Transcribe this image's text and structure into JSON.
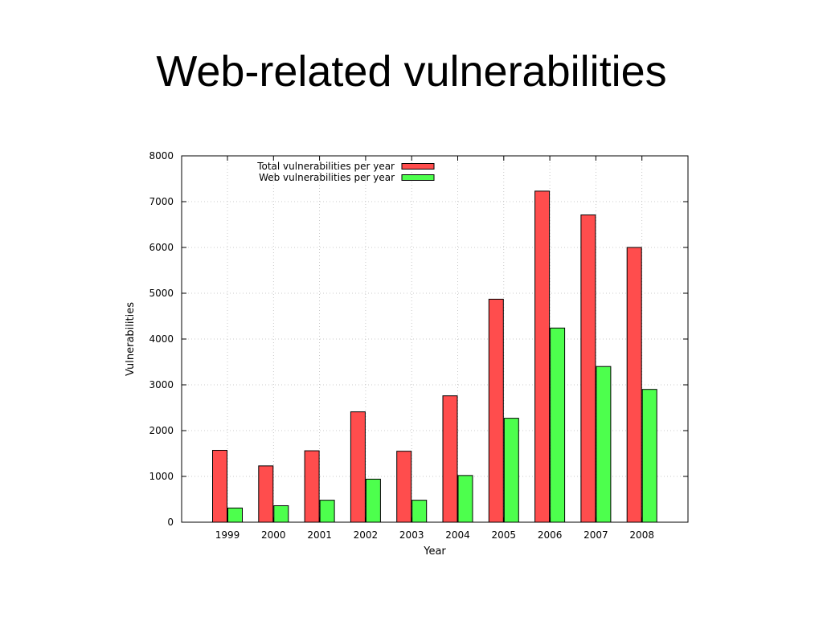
{
  "slide": {
    "title": "Web-related vulnerabilities"
  },
  "colors": {
    "total": "#ff4d4d",
    "web": "#4dff4d",
    "grid": "#bbbbbb",
    "axis": "#000000"
  },
  "chart_data": {
    "type": "bar",
    "title": "",
    "xlabel": "Year",
    "ylabel": "Vulnerabilities",
    "categories": [
      "1999",
      "2000",
      "2001",
      "2002",
      "2003",
      "2004",
      "2005",
      "2006",
      "2007",
      "2008"
    ],
    "ylim": [
      0,
      8000
    ],
    "yticks": [
      "0",
      "1000",
      "2000",
      "3000",
      "4000",
      "5000",
      "6000",
      "7000",
      "8000"
    ],
    "grid": true,
    "legend_position": "top-center",
    "series": [
      {
        "name": "Total vulnerabilities per year",
        "values": [
          1570,
          1230,
          1560,
          2410,
          1550,
          2760,
          4870,
          7230,
          6710,
          6000
        ]
      },
      {
        "name": "Web vulnerabilities per year",
        "values": [
          310,
          360,
          480,
          940,
          480,
          1020,
          2270,
          4240,
          3400,
          2900
        ]
      }
    ]
  }
}
